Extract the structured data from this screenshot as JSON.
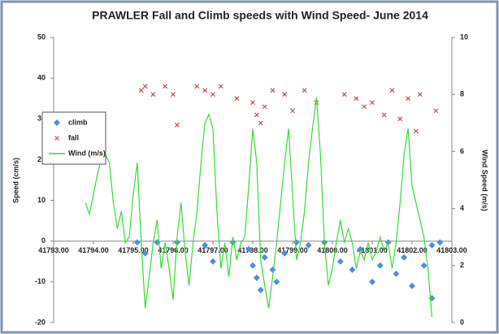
{
  "chart_data": {
    "type": "scatter",
    "title": "PRAWLER Fall and Climb speeds with Wind Speed- June 2014",
    "y_label": "Speed (cm/s)",
    "y2_label": "Wind Speed (m/s)",
    "xlim": [
      41793,
      41803
    ],
    "xticks": [
      {
        "value": 41793,
        "label": "41793.00"
      },
      {
        "value": 41794,
        "label": "41794.00"
      },
      {
        "value": 41795,
        "label": "41795.00"
      },
      {
        "value": 41796,
        "label": "41796.00"
      },
      {
        "value": 41797,
        "label": "41797.00"
      },
      {
        "value": 41798,
        "label": "41798.00"
      },
      {
        "value": 41799,
        "label": "41799.00"
      },
      {
        "value": 41800,
        "label": "41800.00"
      },
      {
        "value": 41801,
        "label": "41801.00"
      },
      {
        "value": 41802,
        "label": "41802.00"
      },
      {
        "value": 41803,
        "label": "41803.00"
      }
    ],
    "ylim": [
      -20,
      50
    ],
    "yticks": [
      50,
      40,
      30,
      20,
      10,
      0,
      -10,
      -20
    ],
    "y2lim": [
      0,
      10
    ],
    "y2ticks": [
      0,
      2,
      4,
      6,
      8,
      10
    ],
    "legend": "left",
    "series": [
      {
        "name": "climb",
        "color": "#4f8fd9",
        "marker": "diamond",
        "x": [
          41795.1,
          41795.3,
          41795.6,
          41796.1,
          41796.8,
          41797.0,
          41797.5,
          41797.9,
          41798.0,
          41798.1,
          41798.2,
          41798.3,
          41798.5,
          41798.6,
          41798.8,
          41799.1,
          41799.4,
          41799.8,
          41800.2,
          41800.5,
          41800.7,
          41801.0,
          41801.2,
          41801.4,
          41801.6,
          41801.8,
          41802.0,
          41802.3,
          41802.5,
          41802.7,
          41802.5
        ],
        "values": [
          -0.3,
          -3,
          -0.3,
          -0.3,
          -1,
          -5,
          -0.3,
          -2,
          -6,
          -9,
          -12,
          -4,
          -7,
          -10,
          -3,
          -0.3,
          -1,
          -0.3,
          -5,
          -7,
          -2,
          -10,
          -6,
          -0.3,
          -8,
          -4,
          -11,
          -6,
          -1,
          -0.3,
          -14
        ]
      },
      {
        "name": "fall",
        "color": "#c0504d",
        "marker": "x",
        "x": [
          41795.2,
          41795.3,
          41795.5,
          41795.8,
          41796.0,
          41796.1,
          41796.6,
          41796.8,
          41797.0,
          41797.2,
          41797.6,
          41798.0,
          41798.1,
          41798.2,
          41798.3,
          41798.5,
          41798.8,
          41799.0,
          41799.3,
          41799.6,
          41800.3,
          41800.6,
          41800.8,
          41801.0,
          41801.3,
          41801.5,
          41801.7,
          41801.9,
          41802.1,
          41802.2,
          41802.6
        ],
        "values": [
          37,
          38,
          36,
          38,
          36,
          28.5,
          38,
          37,
          36,
          38,
          35,
          34,
          31,
          29,
          33,
          37,
          36,
          32,
          37,
          34,
          36,
          35,
          33,
          34,
          31,
          37,
          30,
          35,
          27,
          36,
          32
        ]
      },
      {
        "name": "Wind (m/s)",
        "color": "#33dd33",
        "marker": "line",
        "axis": "y2",
        "x": [
          41793.8,
          41793.9,
          41794.0,
          41794.1,
          41794.2,
          41794.3,
          41794.4,
          41794.5,
          41794.6,
          41794.7,
          41794.8,
          41794.9,
          41795.0,
          41795.1,
          41795.2,
          41795.3,
          41795.4,
          41795.5,
          41795.6,
          41795.7,
          41795.8,
          41795.9,
          41796.0,
          41796.1,
          41796.2,
          41796.3,
          41796.4,
          41796.5,
          41796.6,
          41796.7,
          41796.8,
          41796.9,
          41797.0,
          41797.1,
          41797.2,
          41797.3,
          41797.4,
          41797.5,
          41797.6,
          41797.7,
          41797.8,
          41797.9,
          41798.0,
          41798.1,
          41798.2,
          41798.3,
          41798.4,
          41798.5,
          41798.6,
          41798.7,
          41798.8,
          41798.9,
          41799.0,
          41799.1,
          41799.2,
          41799.3,
          41799.4,
          41799.5,
          41799.6,
          41799.7,
          41799.8,
          41799.9,
          41800.0,
          41800.1,
          41800.2,
          41800.3,
          41800.4,
          41800.5,
          41800.6,
          41800.7,
          41800.8,
          41800.9,
          41801.0,
          41801.1,
          41801.2,
          41801.3,
          41801.4,
          41801.5,
          41801.6,
          41801.7,
          41801.8,
          41801.9,
          41802.0,
          41802.1,
          41802.2,
          41802.3,
          41802.4,
          41802.5
        ],
        "values": [
          4.2,
          3.8,
          4.5,
          5.2,
          5.8,
          5.9,
          5.6,
          4.2,
          3.3,
          3.9,
          2.8,
          3.0,
          4.5,
          5.6,
          2.8,
          0.5,
          1.6,
          2.8,
          3.6,
          1.9,
          2.8,
          1.9,
          0.8,
          3.0,
          4.2,
          2.5,
          1.3,
          2.8,
          3.9,
          5.6,
          7.0,
          7.3,
          6.8,
          3.9,
          1.9,
          2.8,
          1.6,
          3.0,
          2.2,
          2.8,
          3.0,
          4.8,
          6.8,
          5.6,
          2.2,
          1.3,
          0.5,
          1.6,
          2.8,
          4.2,
          5.6,
          6.8,
          4.5,
          2.2,
          2.8,
          3.9,
          5.6,
          6.8,
          7.9,
          5.9,
          2.8,
          1.3,
          1.9,
          2.8,
          3.6,
          2.8,
          3.3,
          2.8,
          1.9,
          2.5,
          2.2,
          2.8,
          2.2,
          2.5,
          3.0,
          2.5,
          2.8,
          1.9,
          2.8,
          4.2,
          5.9,
          6.8,
          4.8,
          4.2,
          3.6,
          3.0,
          1.9,
          0.2
        ]
      }
    ]
  }
}
